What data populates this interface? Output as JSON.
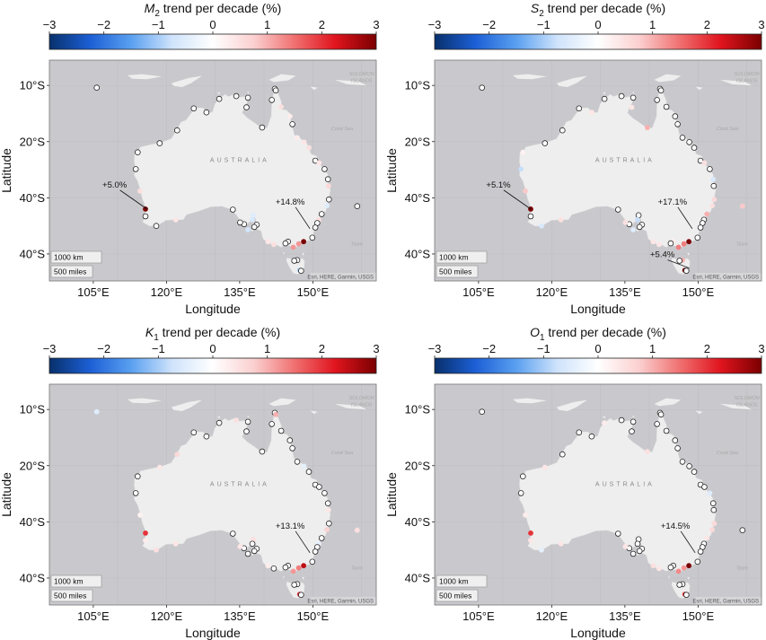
{
  "colors": {
    "ocean": "#c9c9cd",
    "land": "#eeeeee",
    "cmap": [
      "#08306b",
      "#1c5fd6",
      "#5aa0f0",
      "#cfe3fb",
      "#ffffff",
      "#fbd0d0",
      "#f07070",
      "#e0141e",
      "#7a0000"
    ]
  },
  "chart_data": [
    {
      "type": "map",
      "title_symbol": "M",
      "title_sub": "2",
      "title_rest": " trend per decade (%)",
      "colorbar": {
        "min": -3,
        "max": 3,
        "ticks": [
          "−3",
          "−2",
          "−1",
          "0",
          "1",
          "2",
          "3"
        ]
      },
      "x_ticks": [
        "105°E",
        "120°E",
        "135°E",
        "150°E"
      ],
      "y_ticks": [
        "10°S",
        "20°S",
        "40°S",
        "40°S"
      ],
      "xlabel": "Longitude",
      "ylabel": "Latitude",
      "annotations": [
        {
          "text": "+5.0%",
          "lon": 116.0,
          "lat": -32.0
        },
        {
          "text": "+14.8%",
          "lon": 149.4,
          "lat": -35.5
        }
      ]
    },
    {
      "type": "map",
      "title_symbol": "S",
      "title_sub": "2",
      "title_rest": " trend per decade (%)",
      "colorbar": {
        "min": -3,
        "max": 3,
        "ticks": [
          "−3",
          "−2",
          "−1",
          "0",
          "1",
          "2",
          "3"
        ]
      },
      "x_ticks": [
        "105°E",
        "120°E",
        "135°E",
        "150°E"
      ],
      "y_ticks": [
        "10°S",
        "20°S",
        "40°S",
        "40°S"
      ],
      "xlabel": "Longitude",
      "ylabel": "Latitude",
      "annotations": [
        {
          "text": "+5.1%",
          "lon": 115.7,
          "lat": -32.0
        },
        {
          "text": "+17.1%",
          "lon": 148.8,
          "lat": -35.5
        },
        {
          "text": "+5.4%",
          "lon": 148.2,
          "lat": -42.5
        }
      ]
    },
    {
      "type": "map",
      "title_symbol": "K",
      "title_sub": "1",
      "title_rest": " trend per decade (%)",
      "colorbar": {
        "min": -3,
        "max": 3,
        "ticks": [
          "−3",
          "−2",
          "−1",
          "0",
          "1",
          "2",
          "3"
        ]
      },
      "x_ticks": [
        "105°E",
        "120°E",
        "135°E",
        "150°E"
      ],
      "y_ticks": [
        "10°S",
        "20°S",
        "40°S",
        "40°S"
      ],
      "xlabel": "Longitude",
      "ylabel": "Latitude",
      "annotations": [
        {
          "text": "+13.1%",
          "lon": 149.4,
          "lat": -35.5
        }
      ]
    },
    {
      "type": "map",
      "title_symbol": "O",
      "title_sub": "1",
      "title_rest": " trend per decade (%)",
      "colorbar": {
        "min": -3,
        "max": 3,
        "ticks": [
          "−3",
          "−2",
          "−1",
          "0",
          "1",
          "2",
          "3"
        ]
      },
      "x_ticks": [
        "105°E",
        "120°E",
        "135°E",
        "150°E"
      ],
      "y_ticks": [
        "10°S",
        "20°S",
        "40°S",
        "40°S"
      ],
      "xlabel": "Longitude",
      "ylabel": "Latitude",
      "annotations": [
        {
          "text": "+14.5%",
          "lon": 149.4,
          "lat": -35.5
        }
      ]
    }
  ],
  "stations": [
    {
      "lon": 105.7,
      "lat": -10.4,
      "v": [
        0.0,
        0.0,
        -0.5,
        0.0
      ]
    },
    {
      "lon": 114.1,
      "lat": -21.9,
      "v": [
        0.0,
        0.2,
        0.0,
        0.0
      ]
    },
    {
      "lon": 113.7,
      "lat": -24.9,
      "v": [
        0.0,
        -0.8,
        0.0,
        0.0
      ]
    },
    {
      "lon": 114.6,
      "lat": -28.8,
      "v": [
        0.5,
        0.8,
        0.2,
        0.3
      ]
    },
    {
      "lon": 115.7,
      "lat": -32.0,
      "v": [
        3.0,
        3.0,
        2.0,
        2.0
      ]
    },
    {
      "lon": 115.7,
      "lat": -33.3,
      "v": [
        0.0,
        0.0,
        0.3,
        0.4
      ]
    },
    {
      "lon": 117.9,
      "lat": -35.0,
      "v": [
        0.0,
        -0.6,
        0.5,
        -0.4
      ]
    },
    {
      "lon": 121.9,
      "lat": -33.9,
      "v": [
        0.4,
        0.5,
        0.4,
        0.4
      ]
    },
    {
      "lon": 118.6,
      "lat": -20.3,
      "v": [
        0.0,
        0.0,
        0.4,
        0.4
      ]
    },
    {
      "lon": 122.2,
      "lat": -18.0,
      "v": [
        0.0,
        0.0,
        0.6,
        0.0
      ]
    },
    {
      "lon": 125.6,
      "lat": -14.1,
      "v": [
        0.0,
        0.0,
        0.0,
        0.0
      ]
    },
    {
      "lon": 128.2,
      "lat": -14.8,
      "v": [
        0.0,
        0.4,
        0.0,
        0.0
      ]
    },
    {
      "lon": 130.8,
      "lat": -12.4,
      "v": [
        0.0,
        0.0,
        0.0,
        0.3
      ]
    },
    {
      "lon": 134.3,
      "lat": -11.9,
      "v": [
        0.0,
        0.0,
        0.5,
        0.0
      ]
    },
    {
      "lon": 136.7,
      "lat": -12.2,
      "v": [
        0.0,
        0.0,
        0.0,
        0.0
      ]
    },
    {
      "lon": 136.4,
      "lat": -13.9,
      "v": [
        0.0,
        0.4,
        0.0,
        0.0
      ]
    },
    {
      "lon": 139.6,
      "lat": -17.5,
      "v": [
        0.0,
        1.0,
        0.0,
        0.5
      ]
    },
    {
      "lon": 141.6,
      "lat": -12.6,
      "v": [
        0.0,
        0.0,
        0.0,
        0.0
      ]
    },
    {
      "lon": 142.2,
      "lat": -10.6,
      "v": [
        0.0,
        0.0,
        0.0,
        0.0
      ]
    },
    {
      "lon": 142.4,
      "lat": -10.9,
      "v": [
        0.0,
        0.0,
        1.0,
        0.0
      ]
    },
    {
      "lon": 143.5,
      "lat": -13.8,
      "v": [
        0.5,
        0.0,
        0.0,
        0.0
      ]
    },
    {
      "lon": 145.3,
      "lat": -15.5,
      "v": [
        0.3,
        0.0,
        0.0,
        0.0
      ]
    },
    {
      "lon": 145.8,
      "lat": -16.9,
      "v": [
        0.0,
        0.0,
        0.0,
        0.0
      ]
    },
    {
      "lon": 146.8,
      "lat": -19.3,
      "v": [
        0.3,
        0.0,
        0.0,
        0.0
      ]
    },
    {
      "lon": 148.2,
      "lat": -20.1,
      "v": [
        0.4,
        0.0,
        -0.4,
        0.0
      ]
    },
    {
      "lon": 149.2,
      "lat": -21.1,
      "v": [
        0.5,
        0.0,
        0.0,
        0.0
      ]
    },
    {
      "lon": 150.5,
      "lat": -23.4,
      "v": [
        0.0,
        0.0,
        0.0,
        0.0
      ]
    },
    {
      "lon": 151.3,
      "lat": -23.8,
      "v": [
        0.4,
        0.5,
        0.0,
        0.0
      ]
    },
    {
      "lon": 152.4,
      "lat": -24.9,
      "v": [
        0.0,
        0.0,
        0.0,
        -0.5
      ]
    },
    {
      "lon": 153.1,
      "lat": -26.7,
      "v": [
        0.0,
        -0.6,
        0.0,
        0.0
      ]
    },
    {
      "lon": 153.2,
      "lat": -27.9,
      "v": [
        0.6,
        0.0,
        0.4,
        0.0
      ]
    },
    {
      "lon": 153.3,
      "lat": -30.3,
      "v": [
        0.0,
        0.6,
        0.0,
        0.6
      ]
    },
    {
      "lon": 152.9,
      "lat": -31.4,
      "v": [
        -0.5,
        0.5,
        0.7,
        0.6
      ]
    },
    {
      "lon": 151.8,
      "lat": -32.9,
      "v": [
        0.0,
        1.0,
        0.0,
        0.4
      ]
    },
    {
      "lon": 151.2,
      "lat": -33.9,
      "v": [
        0.5,
        0.0,
        -0.4,
        0.0
      ]
    },
    {
      "lon": 150.9,
      "lat": -34.5,
      "v": [
        0.0,
        0.0,
        0.0,
        0.0
      ]
    },
    {
      "lon": 150.5,
      "lat": -35.3,
      "v": [
        0.0,
        0.0,
        0.0,
        0.0
      ]
    },
    {
      "lon": 149.9,
      "lat": -37.1,
      "v": [
        0.0,
        0.0,
        0.0,
        0.0
      ]
    },
    {
      "lon": 148.1,
      "lat": -37.8,
      "v": [
        3.0,
        3.0,
        2.5,
        3.0
      ]
    },
    {
      "lon": 147.1,
      "lat": -38.2,
      "v": [
        1.2,
        1.4,
        1.4,
        1.2
      ]
    },
    {
      "lon": 146.0,
      "lat": -38.8,
      "v": [
        1.2,
        1.4,
        1.2,
        1.3
      ]
    },
    {
      "lon": 144.9,
      "lat": -37.8,
      "v": [
        0.0,
        0.3,
        0.0,
        0.0
      ]
    },
    {
      "lon": 144.4,
      "lat": -38.1,
      "v": [
        0.0,
        0.0,
        0.0,
        0.0
      ]
    },
    {
      "lon": 142.0,
      "lat": -38.3,
      "v": [
        0.5,
        0.4,
        0.0,
        0.4
      ]
    },
    {
      "lon": 140.8,
      "lat": -37.8,
      "v": [
        0.4,
        0.4,
        0.3,
        0.5
      ]
    },
    {
      "lon": 138.5,
      "lat": -34.8,
      "v": [
        0.0,
        0.0,
        0.0,
        0.0
      ]
    },
    {
      "lon": 138.0,
      "lat": -35.2,
      "v": [
        0.0,
        0.0,
        0.0,
        0.0
      ]
    },
    {
      "lon": 137.8,
      "lat": -33.1,
      "v": [
        -0.5,
        0.0,
        0.5,
        0.0
      ]
    },
    {
      "lon": 137.6,
      "lat": -33.9,
      "v": [
        -0.6,
        -0.8,
        0.0,
        0.0
      ]
    },
    {
      "lon": 136.7,
      "lat": -35.7,
      "v": [
        -0.7,
        -0.5,
        0.0,
        0.0
      ]
    },
    {
      "lon": 135.9,
      "lat": -34.7,
      "v": [
        0.0,
        0.0,
        0.0,
        0.0
      ]
    },
    {
      "lon": 135.1,
      "lat": -34.4,
      "v": [
        0.0,
        0.5,
        0.4,
        0.4
      ]
    },
    {
      "lon": 133.6,
      "lat": -32.1,
      "v": [
        0.0,
        0.0,
        0.0,
        0.0
      ]
    },
    {
      "lon": 146.8,
      "lat": -41.1,
      "v": [
        0.0,
        1.0,
        0.0,
        0.0
      ]
    },
    {
      "lon": 147.3,
      "lat": -42.9,
      "v": [
        -1.0,
        3.0,
        2.0,
        2.0
      ]
    },
    {
      "lon": 146.2,
      "lat": -41.2,
      "v": [
        0.0,
        0.0,
        0.0,
        0.0
      ]
    },
    {
      "lon": 147.6,
      "lat": -43.0,
      "v": [
        0.0,
        0.0,
        0.0,
        0.0
      ]
    },
    {
      "lon": 159.1,
      "lat": -31.5,
      "v": [
        0.0,
        0.8,
        0.5,
        0.0
      ]
    }
  ]
}
